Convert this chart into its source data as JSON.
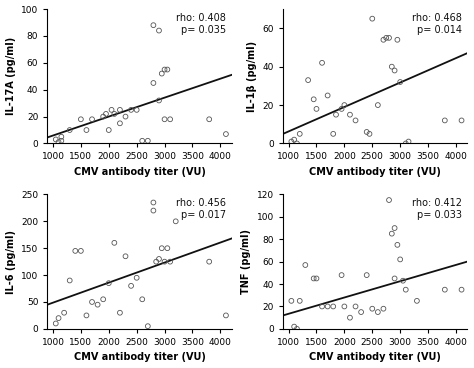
{
  "subplots": [
    {
      "ylabel": "IL-17A (pg/ml)",
      "xlabel": "CMV antibody titer (VU)",
      "rho": "0.408",
      "p": "0.035",
      "ylim": [
        0,
        100
      ],
      "yticks": [
        0,
        20,
        40,
        60,
        80,
        100
      ],
      "xlim": [
        900,
        4200
      ],
      "xticks": [
        1000,
        1500,
        2000,
        2500,
        3000,
        3500,
        4000
      ],
      "line_x": [
        900,
        4200
      ],
      "line_y": [
        4.5,
        51.0
      ],
      "x": [
        1050,
        1100,
        1150,
        1150,
        1300,
        1500,
        1600,
        1700,
        1900,
        1950,
        2000,
        2050,
        2100,
        2200,
        2200,
        2300,
        2400,
        2500,
        2600,
        2700,
        2800,
        2800,
        2900,
        2900,
        2950,
        3000,
        3000,
        3050,
        3100,
        3800,
        4100
      ],
      "y": [
        3,
        1,
        2,
        5,
        10,
        18,
        10,
        18,
        20,
        22,
        10,
        25,
        22,
        15,
        25,
        20,
        25,
        25,
        2,
        2,
        88,
        45,
        84,
        32,
        52,
        18,
        55,
        55,
        18,
        18,
        7
      ]
    },
    {
      "ylabel": "IL-1β (pg/ml)",
      "xlabel": "CMV antibody titer (VU)",
      "rho": "0.468",
      "p": "0.014",
      "ylim": [
        0,
        70
      ],
      "yticks": [
        0,
        20,
        40,
        60
      ],
      "xlim": [
        900,
        4200
      ],
      "xticks": [
        1000,
        1500,
        2000,
        2500,
        3000,
        3500,
        4000
      ],
      "line_x": [
        900,
        4200
      ],
      "line_y": [
        5.0,
        47.0
      ],
      "x": [
        1050,
        1100,
        1150,
        1200,
        1350,
        1450,
        1500,
        1600,
        1700,
        1800,
        1850,
        1950,
        2000,
        2100,
        2200,
        2400,
        2450,
        2500,
        2600,
        2700,
        2750,
        2800,
        2850,
        2900,
        2950,
        3000,
        3100,
        3150,
        3800,
        4100
      ],
      "y": [
        1,
        2,
        0,
        5,
        33,
        23,
        18,
        42,
        25,
        5,
        15,
        18,
        20,
        15,
        12,
        6,
        5,
        65,
        20,
        54,
        55,
        55,
        40,
        38,
        54,
        32,
        0,
        1,
        12,
        12
      ]
    },
    {
      "ylabel": "IL-6 (pg/ml)",
      "xlabel": "CMV antibody titer (VU)",
      "rho": "0.456",
      "p": "0.017",
      "ylim": [
        0,
        250
      ],
      "yticks": [
        0,
        50,
        100,
        150,
        200,
        250
      ],
      "xlim": [
        900,
        4200
      ],
      "xticks": [
        1000,
        1500,
        2000,
        2500,
        3000,
        3500,
        4000
      ],
      "line_x": [
        900,
        4200
      ],
      "line_y": [
        45.0,
        168.0
      ],
      "x": [
        1050,
        1100,
        1200,
        1300,
        1400,
        1500,
        1600,
        1700,
        1800,
        1900,
        2000,
        2100,
        2200,
        2300,
        2400,
        2500,
        2600,
        2700,
        2800,
        2800,
        2850,
        2900,
        2950,
        3000,
        3050,
        3100,
        3200,
        3800,
        4100
      ],
      "y": [
        10,
        20,
        30,
        90,
        145,
        145,
        25,
        50,
        45,
        55,
        85,
        160,
        30,
        135,
        80,
        95,
        55,
        5,
        220,
        235,
        125,
        130,
        150,
        125,
        150,
        125,
        200,
        125,
        25
      ]
    },
    {
      "ylabel": "TNF (pg/ml)",
      "xlabel": "CMV antibody titer (VU)",
      "rho": "0.412",
      "p": "0.033",
      "ylim": [
        0,
        120
      ],
      "yticks": [
        0,
        20,
        40,
        60,
        80,
        100,
        120
      ],
      "xlim": [
        900,
        4200
      ],
      "xticks": [
        1000,
        1500,
        2000,
        2500,
        3000,
        3500,
        4000
      ],
      "line_x": [
        900,
        4200
      ],
      "line_y": [
        12.0,
        60.0
      ],
      "x": [
        1050,
        1100,
        1150,
        1200,
        1300,
        1450,
        1500,
        1600,
        1700,
        1800,
        1950,
        2000,
        2100,
        2200,
        2300,
        2400,
        2500,
        2600,
        2700,
        2800,
        2850,
        2900,
        2900,
        2950,
        3000,
        3050,
        3100,
        3300,
        3800,
        4100
      ],
      "y": [
        25,
        2,
        0,
        25,
        57,
        45,
        45,
        20,
        20,
        20,
        48,
        20,
        10,
        20,
        15,
        48,
        18,
        15,
        18,
        115,
        85,
        45,
        90,
        75,
        62,
        43,
        35,
        25,
        35,
        35
      ]
    }
  ],
  "background_color": "#ffffff",
  "scatter_color": "none",
  "scatter_edgecolor": "#555555",
  "line_color": "#111111",
  "text_color": "#111111",
  "font_family": "DejaVu Sans"
}
